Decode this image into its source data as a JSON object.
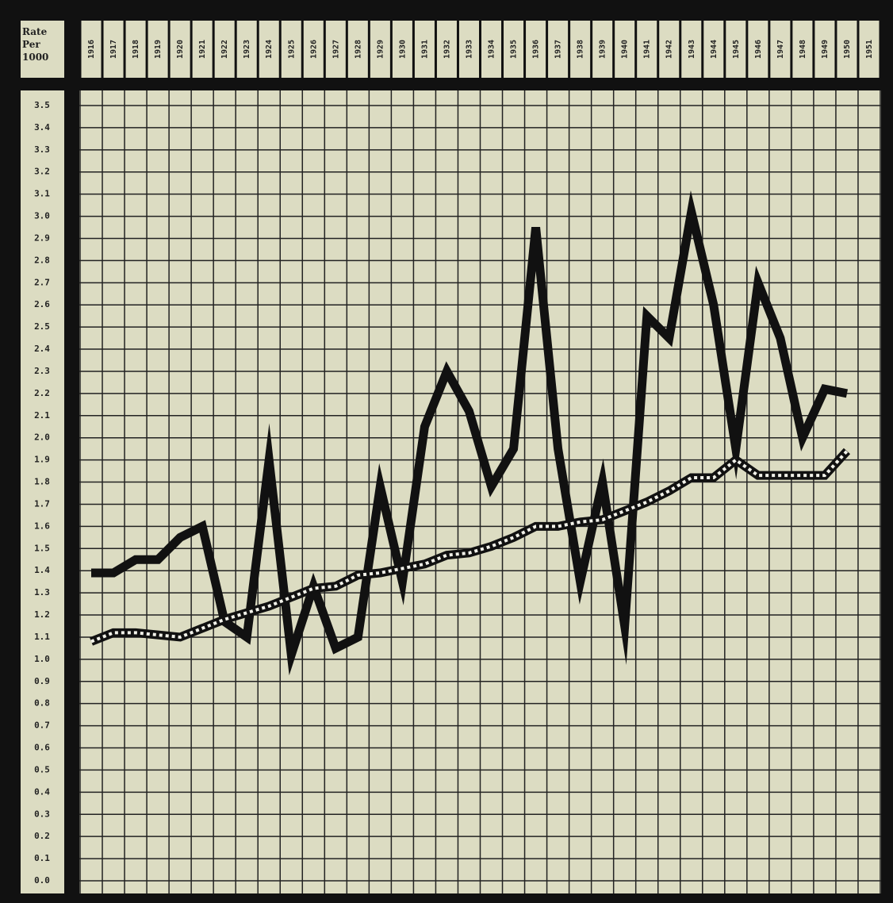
{
  "chart_data": {
    "type": "line",
    "y_label": "Rate Per 1000",
    "categories": [
      "1916",
      "1917",
      "1918",
      "1919",
      "1920",
      "1921",
      "1922",
      "1923",
      "1924",
      "1925",
      "1926",
      "1927",
      "1928",
      "1929",
      "1930",
      "1931",
      "1932",
      "1933",
      "1934",
      "1935",
      "1936",
      "1937",
      "1938",
      "1939",
      "1940",
      "1941",
      "1942",
      "1943",
      "1944",
      "1945",
      "1946",
      "1947",
      "1948",
      "1949",
      "1950",
      "1951"
    ],
    "series": [
      {
        "color": "#111111",
        "style": "solid",
        "values": [
          1.39,
          1.39,
          1.45,
          1.45,
          1.55,
          1.6,
          1.17,
          1.1,
          1.9,
          1.02,
          1.33,
          1.05,
          1.1,
          1.78,
          1.35,
          2.05,
          2.3,
          2.12,
          1.78,
          1.95,
          2.95,
          1.95,
          1.35,
          1.8,
          1.15,
          2.55,
          2.45,
          3.02,
          2.6,
          1.95,
          2.7,
          2.45,
          2.0,
          2.22,
          2.2,
          null
        ]
      },
      {
        "color": "#111111",
        "style": "dotted",
        "values": [
          1.08,
          1.12,
          1.12,
          1.11,
          1.1,
          1.14,
          1.18,
          1.21,
          1.24,
          1.28,
          1.32,
          1.33,
          1.38,
          1.39,
          1.41,
          1.43,
          1.47,
          1.48,
          1.51,
          1.55,
          1.6,
          1.6,
          1.62,
          1.63,
          1.67,
          1.71,
          1.76,
          1.82,
          1.82,
          1.9,
          1.83,
          1.83,
          1.83,
          1.83,
          1.94,
          null
        ]
      }
    ],
    "ylim": [
      0,
      3.5
    ],
    "yticks": [
      {
        "value": 0,
        "label": "0.0"
      },
      0.1,
      0.2,
      0.3,
      0.4,
      0.5,
      0.6,
      0.7,
      0.8,
      0.9,
      {
        "value": 1,
        "label": "1.0"
      },
      1.1,
      1.2,
      1.3,
      1.4,
      1.5,
      1.6,
      1.7,
      1.8,
      1.9,
      {
        "value": 2,
        "label": "2.0"
      },
      2.1,
      2.2,
      2.3,
      2.4,
      2.5,
      2.6,
      2.7,
      2.8,
      2.9,
      {
        "value": 3,
        "label": "3.0"
      },
      3.1,
      3.2,
      3.3,
      3.4,
      3.5
    ],
    "grid": true
  }
}
